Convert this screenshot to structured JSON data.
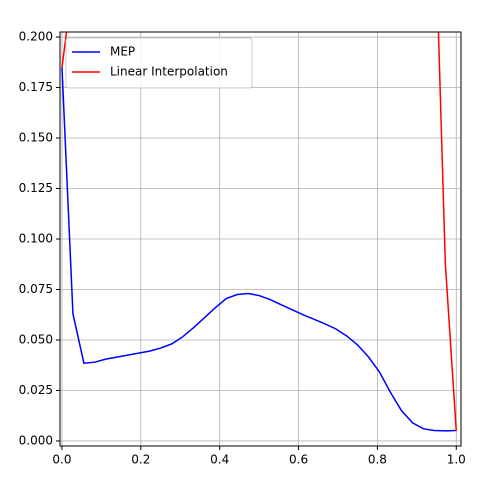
{
  "chart_data": {
    "type": "line",
    "series": [
      {
        "name": "MEP",
        "color": "#0000ff",
        "x": [
          0,
          0.0278,
          0.0556,
          0.0833,
          0.1111,
          0.1389,
          0.1667,
          0.1944,
          0.2222,
          0.25,
          0.2778,
          0.3056,
          0.3333,
          0.3611,
          0.3889,
          0.4167,
          0.4444,
          0.4722,
          0.5,
          0.5278,
          0.5556,
          0.5833,
          0.6111,
          0.6389,
          0.6667,
          0.6944,
          0.7222,
          0.75,
          0.7778,
          0.8056,
          0.8333,
          0.8611,
          0.8889,
          0.9167,
          0.9444,
          0.9722,
          1.0
        ],
        "values": [
          0.185,
          0.063,
          0.0385,
          0.039,
          0.0405,
          0.0415,
          0.0425,
          0.0435,
          0.0445,
          0.046,
          0.048,
          0.0515,
          0.056,
          0.061,
          0.066,
          0.0705,
          0.0725,
          0.073,
          0.072,
          0.07,
          0.0675,
          0.065,
          0.0625,
          0.0603,
          0.058,
          0.0555,
          0.052,
          0.0475,
          0.0415,
          0.034,
          0.024,
          0.015,
          0.009,
          0.006,
          0.0052,
          0.005,
          0.0052
        ]
      },
      {
        "name": "Linear Interpolation",
        "color": "#ff0000",
        "x": [
          0,
          0.0278,
          0.9444,
          0.9722,
          1.0
        ],
        "values": [
          0.185,
          0.227,
          0.271,
          0.088,
          0.005
        ]
      }
    ],
    "xlim": [
      -0.005,
      1.012
    ],
    "ylim": [
      -0.0025,
      0.2025
    ],
    "xticks": [
      {
        "value": 0,
        "label": "0.0"
      },
      0.2,
      0.4,
      0.6,
      0.8,
      {
        "value": 1,
        "label": "1.0"
      }
    ],
    "yticks": [
      {
        "value": 0,
        "label": "0.000"
      },
      0.025,
      {
        "value": 0.05,
        "label": "0.050"
      },
      0.075,
      {
        "value": 0.1,
        "label": "0.100"
      },
      0.125,
      {
        "value": 0.15,
        "label": "0.150"
      },
      0.175,
      {
        "value": 0.2,
        "label": "0.200"
      }
    ],
    "grid": true,
    "legend": "upper left"
  }
}
